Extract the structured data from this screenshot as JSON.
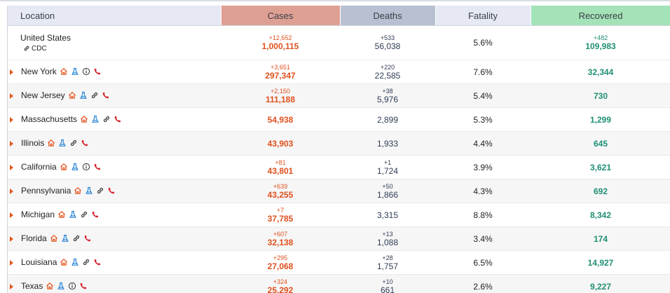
{
  "headers": {
    "location": "Location",
    "cases": "Cases",
    "deaths": "Deaths",
    "fatality": "Fatality",
    "recovered": "Recovered"
  },
  "colors": {
    "cases_header": "#dfa094",
    "deaths_header": "#b8c1d1",
    "recovered_header": "#a4e2b8",
    "cases_text": "#e0501d",
    "recovered_text": "#1f8f74",
    "accent_arrow": "#e3561f"
  },
  "country": {
    "name": "United States",
    "source_link": "CDC",
    "cases_delta": "+12,652",
    "cases": "1,000,115",
    "deaths_delta": "+533",
    "deaths": "56,038",
    "fatality": "5.6%",
    "recovered_delta": "+482",
    "recovered": "109,983"
  },
  "states": [
    {
      "name": "New York",
      "icons": [
        "home-icon",
        "flask-icon",
        "info-icon",
        "phone-icon"
      ],
      "cases_delta": "+3,651",
      "cases": "297,347",
      "deaths_delta": "+220",
      "deaths": "22,585",
      "fatality": "7.6%",
      "recovered_delta": "",
      "recovered": "32,344"
    },
    {
      "name": "New Jersey",
      "icons": [
        "home-icon",
        "flask-icon",
        "link-icon",
        "phone-icon"
      ],
      "cases_delta": "+2,150",
      "cases": "111,188",
      "deaths_delta": "+38",
      "deaths": "5,976",
      "fatality": "5.4%",
      "recovered_delta": "",
      "recovered": "730"
    },
    {
      "name": "Massachusetts",
      "icons": [
        "home-icon",
        "flask-icon",
        "link-icon",
        "phone-icon"
      ],
      "cases_delta": "",
      "cases": "54,938",
      "deaths_delta": "",
      "deaths": "2,899",
      "fatality": "5.3%",
      "recovered_delta": "",
      "recovered": "1,299"
    },
    {
      "name": "Illinois",
      "icons": [
        "home-icon",
        "flask-icon",
        "link-icon",
        "phone-icon"
      ],
      "cases_delta": "",
      "cases": "43,903",
      "deaths_delta": "",
      "deaths": "1,933",
      "fatality": "4.4%",
      "recovered_delta": "",
      "recovered": "645"
    },
    {
      "name": "California",
      "icons": [
        "home-icon",
        "flask-icon",
        "info-icon",
        "phone-icon"
      ],
      "cases_delta": "+81",
      "cases": "43,801",
      "deaths_delta": "+1",
      "deaths": "1,724",
      "fatality": "3.9%",
      "recovered_delta": "",
      "recovered": "3,621"
    },
    {
      "name": "Pennsylvania",
      "icons": [
        "home-icon",
        "flask-icon",
        "link-icon",
        "phone-icon"
      ],
      "cases_delta": "+639",
      "cases": "43,255",
      "deaths_delta": "+50",
      "deaths": "1,866",
      "fatality": "4.3%",
      "recovered_delta": "",
      "recovered": "692"
    },
    {
      "name": "Michigan",
      "icons": [
        "home-icon",
        "flask-icon",
        "link-icon",
        "phone-icon"
      ],
      "cases_delta": "+7",
      "cases": "37,785",
      "deaths_delta": "",
      "deaths": "3,315",
      "fatality": "8.8%",
      "recovered_delta": "",
      "recovered": "8,342"
    },
    {
      "name": "Florida",
      "icons": [
        "home-icon",
        "flask-icon",
        "link-icon",
        "phone-icon"
      ],
      "cases_delta": "+607",
      "cases": "32,138",
      "deaths_delta": "+13",
      "deaths": "1,088",
      "fatality": "3.4%",
      "recovered_delta": "",
      "recovered": "174"
    },
    {
      "name": "Louisiana",
      "icons": [
        "home-icon",
        "flask-icon",
        "link-icon",
        "phone-icon"
      ],
      "cases_delta": "+295",
      "cases": "27,068",
      "deaths_delta": "+28",
      "deaths": "1,757",
      "fatality": "6.5%",
      "recovered_delta": "",
      "recovered": "14,927"
    },
    {
      "name": "Texas",
      "icons": [
        "home-icon",
        "flask-icon",
        "info-icon",
        "phone-icon"
      ],
      "cases_delta": "+324",
      "cases": "25,292",
      "deaths_delta": "+10",
      "deaths": "661",
      "fatality": "2.6%",
      "recovered_delta": "",
      "recovered": "9,227"
    }
  ]
}
